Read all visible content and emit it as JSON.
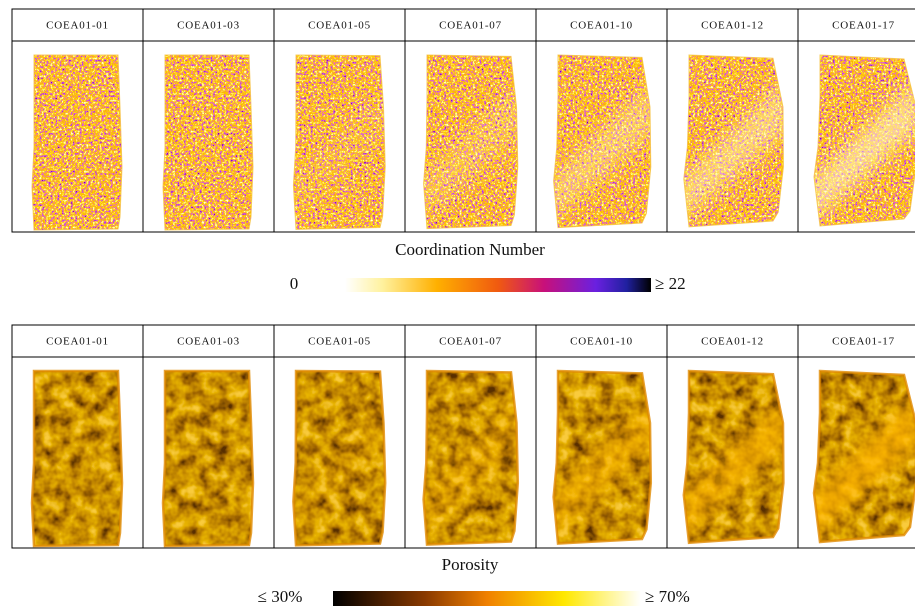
{
  "coordination": {
    "panels": [
      "COEA01-01",
      "COEA01-03",
      "COEA01-05",
      "COEA01-07",
      "COEA01-10",
      "COEA01-12",
      "COEA01-17"
    ],
    "title": "Coordination Number",
    "colorbar": {
      "min_label": "0",
      "max_label": "≥ 22"
    }
  },
  "porosity": {
    "panels": [
      "COEA01-01",
      "COEA01-03",
      "COEA01-05",
      "COEA01-07",
      "COEA01-10",
      "COEA01-12",
      "COEA01-17"
    ],
    "title": "Porosity",
    "colorbar": {
      "min_label": "≤ 30%",
      "max_label": "≥ 70%"
    }
  }
}
